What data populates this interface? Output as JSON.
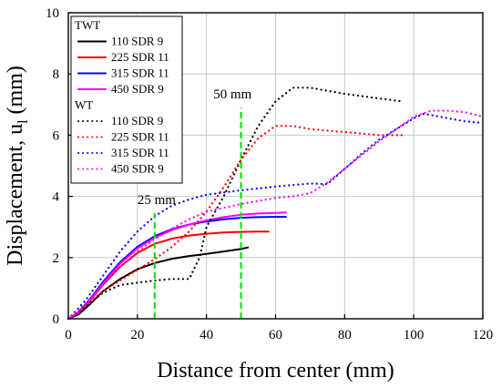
{
  "chart_data": {
    "type": "line",
    "title": "",
    "xlabel": "Distance from center (mm)",
    "ylabel_main": "Displacement, u",
    "ylabel_sub": "l",
    "ylabel_unit": " (mm)",
    "xlim": [
      0,
      120
    ],
    "ylim": [
      0,
      10
    ],
    "xticks": [
      0,
      20,
      40,
      60,
      80,
      100,
      120
    ],
    "yticks": [
      0,
      2,
      4,
      6,
      8,
      10
    ],
    "grid": true,
    "legend_position": "top-left",
    "legend_groups": [
      {
        "title": "TWT",
        "style": "solid",
        "series": [
          0,
          1,
          2,
          3
        ]
      },
      {
        "title": "WT",
        "style": "dotted",
        "series": [
          4,
          5,
          6,
          7
        ]
      }
    ],
    "series": [
      {
        "name": "110 SDR 9",
        "group": "TWT",
        "color": "#000000",
        "style": "solid",
        "x": [
          0,
          3,
          6,
          10,
          15,
          20,
          25,
          30,
          35,
          40,
          45,
          50,
          52
        ],
        "y": [
          0,
          0.15,
          0.45,
          0.9,
          1.3,
          1.62,
          1.82,
          1.96,
          2.05,
          2.12,
          2.2,
          2.28,
          2.33
        ]
      },
      {
        "name": "225 SDR 11",
        "group": "TWT",
        "color": "#ff0000",
        "style": "solid",
        "x": [
          0,
          3,
          6,
          10,
          15,
          20,
          25,
          30,
          35,
          40,
          45,
          50,
          55,
          58
        ],
        "y": [
          0,
          0.2,
          0.55,
          1.1,
          1.7,
          2.15,
          2.45,
          2.62,
          2.72,
          2.78,
          2.82,
          2.84,
          2.85,
          2.85
        ]
      },
      {
        "name": "315 SDR 11",
        "group": "TWT",
        "color": "#0000ff",
        "style": "solid",
        "x": [
          0,
          3,
          6,
          10,
          15,
          20,
          25,
          30,
          35,
          40,
          45,
          50,
          55,
          60,
          63
        ],
        "y": [
          0,
          0.22,
          0.6,
          1.2,
          1.85,
          2.35,
          2.7,
          2.93,
          3.08,
          3.18,
          3.25,
          3.3,
          3.32,
          3.33,
          3.33
        ]
      },
      {
        "name": "450 SDR 9",
        "group": "TWT",
        "color": "#ff00ff",
        "style": "solid",
        "x": [
          0,
          3,
          6,
          10,
          15,
          20,
          25,
          30,
          35,
          40,
          45,
          50,
          55,
          60,
          63
        ],
        "y": [
          0,
          0.2,
          0.55,
          1.15,
          1.8,
          2.3,
          2.65,
          2.9,
          3.08,
          3.22,
          3.32,
          3.4,
          3.44,
          3.46,
          3.47
        ]
      },
      {
        "name": "110 SDR 9",
        "group": "WT",
        "color": "#000000",
        "style": "dotted",
        "x": [
          0,
          5,
          10,
          15,
          20,
          25,
          30,
          35,
          38,
          40,
          45,
          50,
          55,
          60,
          65,
          70,
          80,
          90,
          97
        ],
        "y": [
          0,
          0.4,
          0.85,
          1.1,
          1.18,
          1.25,
          1.3,
          1.3,
          2.0,
          3.0,
          4.0,
          5.2,
          6.3,
          7.1,
          7.55,
          7.55,
          7.35,
          7.2,
          7.1
        ]
      },
      {
        "name": "225 SDR 11",
        "group": "WT",
        "color": "#ff0000",
        "style": "dotted",
        "x": [
          0,
          5,
          10,
          15,
          20,
          25,
          30,
          35,
          40,
          45,
          50,
          55,
          60,
          65,
          70,
          80,
          90,
          97
        ],
        "y": [
          0,
          0.45,
          0.9,
          1.25,
          1.6,
          1.95,
          2.35,
          2.85,
          3.5,
          4.3,
          5.2,
          5.9,
          6.3,
          6.3,
          6.2,
          6.1,
          6.0,
          6.0
        ]
      },
      {
        "name": "315 SDR 11",
        "group": "WT",
        "color": "#0000ff",
        "style": "dotted",
        "x": [
          0,
          5,
          10,
          15,
          20,
          25,
          30,
          35,
          40,
          50,
          60,
          70,
          75,
          80,
          85,
          90,
          95,
          100,
          103,
          110,
          115,
          120
        ],
        "y": [
          0,
          0.6,
          1.4,
          2.2,
          2.85,
          3.35,
          3.7,
          3.9,
          4.05,
          4.2,
          4.32,
          4.42,
          4.4,
          4.9,
          5.4,
          5.85,
          6.2,
          6.55,
          6.7,
          6.55,
          6.45,
          6.4
        ]
      },
      {
        "name": "450 SDR 9",
        "group": "WT",
        "color": "#ff00ff",
        "style": "dotted",
        "x": [
          0,
          5,
          10,
          15,
          20,
          25,
          30,
          35,
          40,
          50,
          60,
          65,
          70,
          75,
          80,
          85,
          90,
          95,
          100,
          105,
          110,
          115,
          120
        ],
        "y": [
          0,
          0.5,
          1.1,
          1.7,
          2.2,
          2.6,
          2.95,
          3.25,
          3.5,
          3.75,
          3.95,
          4.0,
          4.1,
          4.45,
          4.9,
          5.35,
          5.8,
          6.2,
          6.6,
          6.8,
          6.8,
          6.75,
          6.6
        ]
      }
    ],
    "annotations": [
      {
        "text": "25 mm",
        "line_x": 25,
        "line_y": [
          0,
          3.45
        ],
        "line_color": "#00e000",
        "label_x": 20,
        "label_y": 3.75
      },
      {
        "text": "50 mm",
        "line_x": 50,
        "line_y": [
          0,
          6.9
        ],
        "line_color": "#00e000",
        "label_x": 42,
        "label_y": 7.2
      }
    ]
  }
}
